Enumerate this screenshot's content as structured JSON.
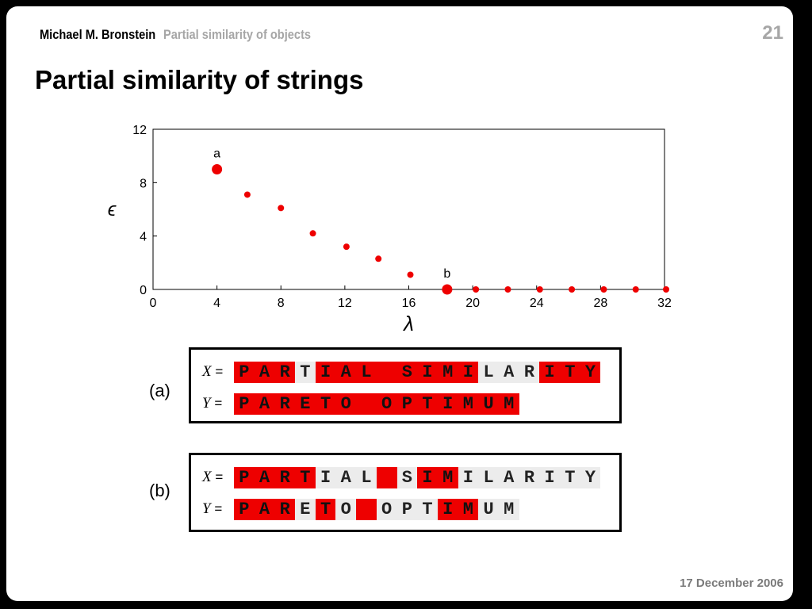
{
  "header": {
    "author": "Michael M. Bronstein",
    "section": "Partial similarity of objects",
    "page_number": "21"
  },
  "title": "Partial similarity of strings",
  "footer": {
    "date": "17 December 2006"
  },
  "chart_data": {
    "type": "scatter",
    "xlabel": "λ",
    "ylabel": "ϵ",
    "xlim": [
      0,
      32
    ],
    "ylim": [
      0,
      12
    ],
    "xticks": [
      0,
      4,
      8,
      12,
      16,
      20,
      24,
      28,
      32
    ],
    "yticks": [
      0,
      4,
      8,
      12
    ],
    "points": [
      {
        "x": 4,
        "y": 9,
        "large": true,
        "label": "a"
      },
      {
        "x": 5.9,
        "y": 7.1
      },
      {
        "x": 8,
        "y": 6.1
      },
      {
        "x": 10,
        "y": 4.2
      },
      {
        "x": 12.1,
        "y": 3.2
      },
      {
        "x": 14.1,
        "y": 2.3
      },
      {
        "x": 16.1,
        "y": 1.1
      },
      {
        "x": 18.4,
        "y": 0,
        "large": true,
        "label": "b"
      },
      {
        "x": 20.2,
        "y": 0
      },
      {
        "x": 22.2,
        "y": 0
      },
      {
        "x": 24.2,
        "y": 0
      },
      {
        "x": 26.2,
        "y": 0
      },
      {
        "x": 28.2,
        "y": 0
      },
      {
        "x": 30.2,
        "y": 0
      },
      {
        "x": 32.1,
        "y": 0
      }
    ],
    "point_color": "#ee0000"
  },
  "examples": [
    {
      "label": "(a)",
      "rows": [
        {
          "name": "X",
          "eq": "=",
          "chars": "PARTIAL SIMILARITY",
          "red": [
            0,
            1,
            2,
            4,
            5,
            6,
            7,
            8,
            9,
            10,
            11,
            15,
            16,
            17
          ]
        },
        {
          "name": "Y",
          "eq": "=",
          "chars": "PARETO OPTIMUM",
          "red": [
            0,
            1,
            2,
            3,
            4,
            5,
            6,
            7,
            8,
            9,
            10,
            11,
            12,
            13
          ]
        }
      ]
    },
    {
      "label": "(b)",
      "rows": [
        {
          "name": "X",
          "eq": "=",
          "chars": "PARTIAL SIMILARITY",
          "red": [
            0,
            1,
            2,
            3,
            7,
            9,
            10
          ]
        },
        {
          "name": "Y",
          "eq": "=",
          "chars": "PARETO OPTIMUM",
          "red": [
            0,
            1,
            2,
            4,
            6,
            10,
            11
          ]
        }
      ]
    }
  ],
  "colors": {
    "highlight": "#ee0000",
    "unmatched": "#ececec"
  }
}
